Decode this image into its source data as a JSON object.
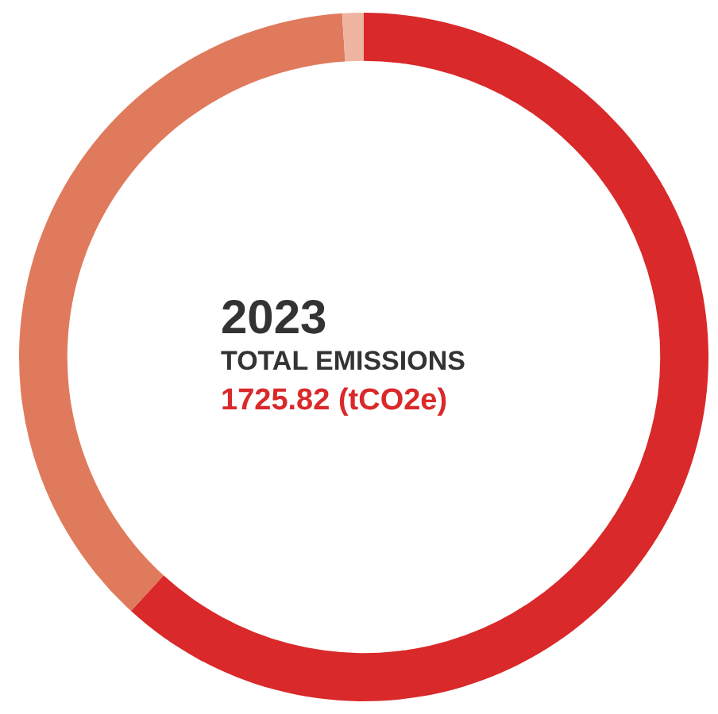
{
  "chart_data": {
    "type": "donut",
    "title": "2023",
    "subtitle": "TOTAL EMISSIONS",
    "annotations": [
      "1725.82 (tCO2e)"
    ],
    "categories": [
      null,
      null,
      null
    ],
    "values": [
      61.8,
      37.2,
      1.0
    ],
    "colors": [
      "#d9292a",
      "#e07a5c",
      "#efb5a0"
    ],
    "legend": false
  }
}
